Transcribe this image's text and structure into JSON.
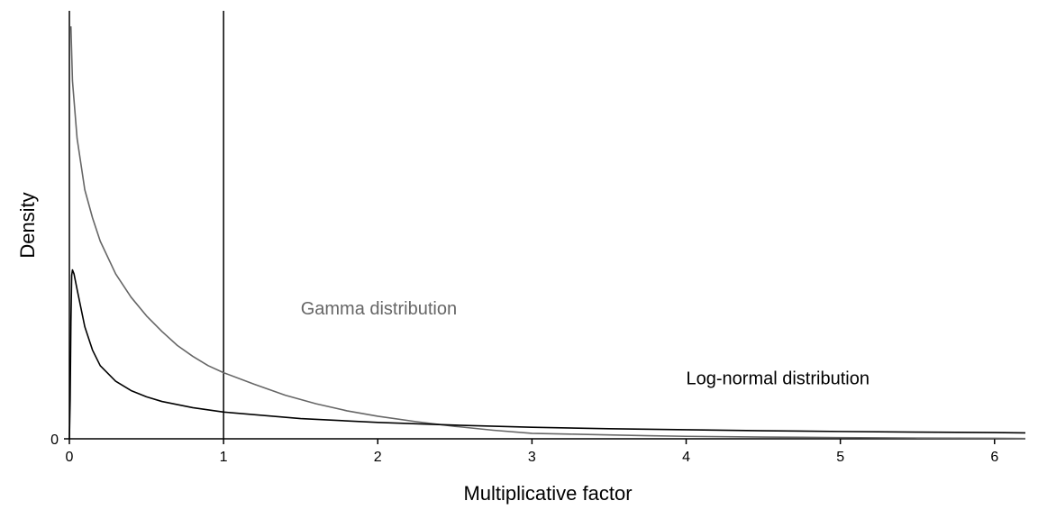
{
  "chart_data": {
    "type": "line",
    "title": "",
    "xlabel": "Multiplicative factor",
    "ylabel": "Density",
    "xlim": [
      0,
      6.2
    ],
    "ylim": [
      0,
      2.75
    ],
    "x_ticks": [
      0,
      1,
      2,
      3,
      4,
      5,
      6
    ],
    "y_ticks": [
      0
    ],
    "grid": false,
    "reference_line": {
      "x": 1
    },
    "series": [
      {
        "name": "Gamma distribution",
        "color": "#666666",
        "x": [
          0.01,
          0.02,
          0.05,
          0.1,
          0.15,
          0.2,
          0.3,
          0.4,
          0.5,
          0.6,
          0.7,
          0.8,
          0.9,
          1.0,
          1.2,
          1.4,
          1.6,
          1.8,
          2.0,
          2.25,
          2.5,
          2.75,
          3.0,
          3.25,
          3.5,
          3.75,
          4.0,
          4.5,
          5.0,
          5.5,
          6.0,
          6.2
        ],
        "y": [
          2.65,
          2.3,
          1.93,
          1.6,
          1.42,
          1.27,
          1.06,
          0.91,
          0.79,
          0.69,
          0.6,
          0.53,
          0.47,
          0.425,
          0.35,
          0.28,
          0.225,
          0.18,
          0.145,
          0.11,
          0.08,
          0.055,
          0.035,
          0.03,
          0.025,
          0.02,
          0.016,
          0.011,
          0.008,
          0.005,
          0.003,
          0.002
        ]
      },
      {
        "name": "Log-normal distribution",
        "color": "#000000",
        "x": [
          0.0,
          0.005,
          0.01,
          0.015,
          0.02,
          0.03,
          0.05,
          0.1,
          0.15,
          0.2,
          0.3,
          0.4,
          0.5,
          0.6,
          0.8,
          1.0,
          1.5,
          2.0,
          2.5,
          3.0,
          3.5,
          4.0,
          4.5,
          5.0,
          5.5,
          6.0,
          6.2
        ],
        "y": [
          0.0,
          0.25,
          0.75,
          1.05,
          1.085,
          1.06,
          0.96,
          0.72,
          0.57,
          0.47,
          0.37,
          0.31,
          0.27,
          0.24,
          0.2,
          0.172,
          0.13,
          0.105,
          0.088,
          0.074,
          0.065,
          0.058,
          0.052,
          0.047,
          0.043,
          0.04,
          0.038
        ]
      }
    ],
    "annotations": [
      {
        "text": "Gamma distribution",
        "series": "Gamma distribution",
        "x": 1.5,
        "y": 0.8
      },
      {
        "text": "Log-normal distribution",
        "series": "Log-normal distribution",
        "x": 4.0,
        "y": 0.35
      }
    ]
  }
}
